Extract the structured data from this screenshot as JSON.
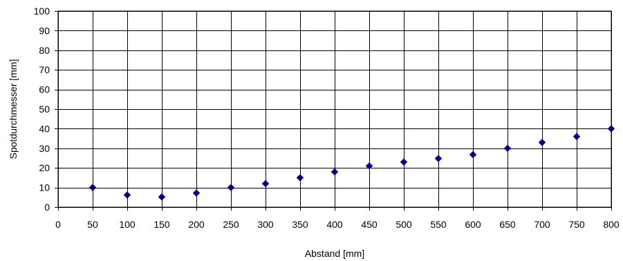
{
  "chart_data": {
    "type": "scatter",
    "title": "",
    "xlabel": "Abstand  [mm]",
    "ylabel": "Spotdurchmesser  [mm]",
    "xlim": [
      0,
      800
    ],
    "ylim": [
      0,
      100
    ],
    "xticks": [
      0,
      50,
      100,
      150,
      200,
      250,
      300,
      350,
      400,
      450,
      500,
      550,
      600,
      650,
      700,
      750,
      800
    ],
    "yticks": [
      0,
      10,
      20,
      30,
      40,
      50,
      60,
      70,
      80,
      90,
      100
    ],
    "grid": true,
    "legend": "none",
    "marker": "diamond",
    "marker_color": "#000080",
    "series": [
      {
        "x": [
          50,
          100,
          150,
          200,
          250,
          300,
          350,
          400,
          450,
          500,
          550,
          600,
          650,
          700,
          750,
          800
        ],
        "y": [
          10,
          6.2,
          5.2,
          7.2,
          10,
          12,
          15,
          18,
          21,
          23,
          24.8,
          26.8,
          30,
          33,
          36,
          40
        ]
      }
    ]
  }
}
